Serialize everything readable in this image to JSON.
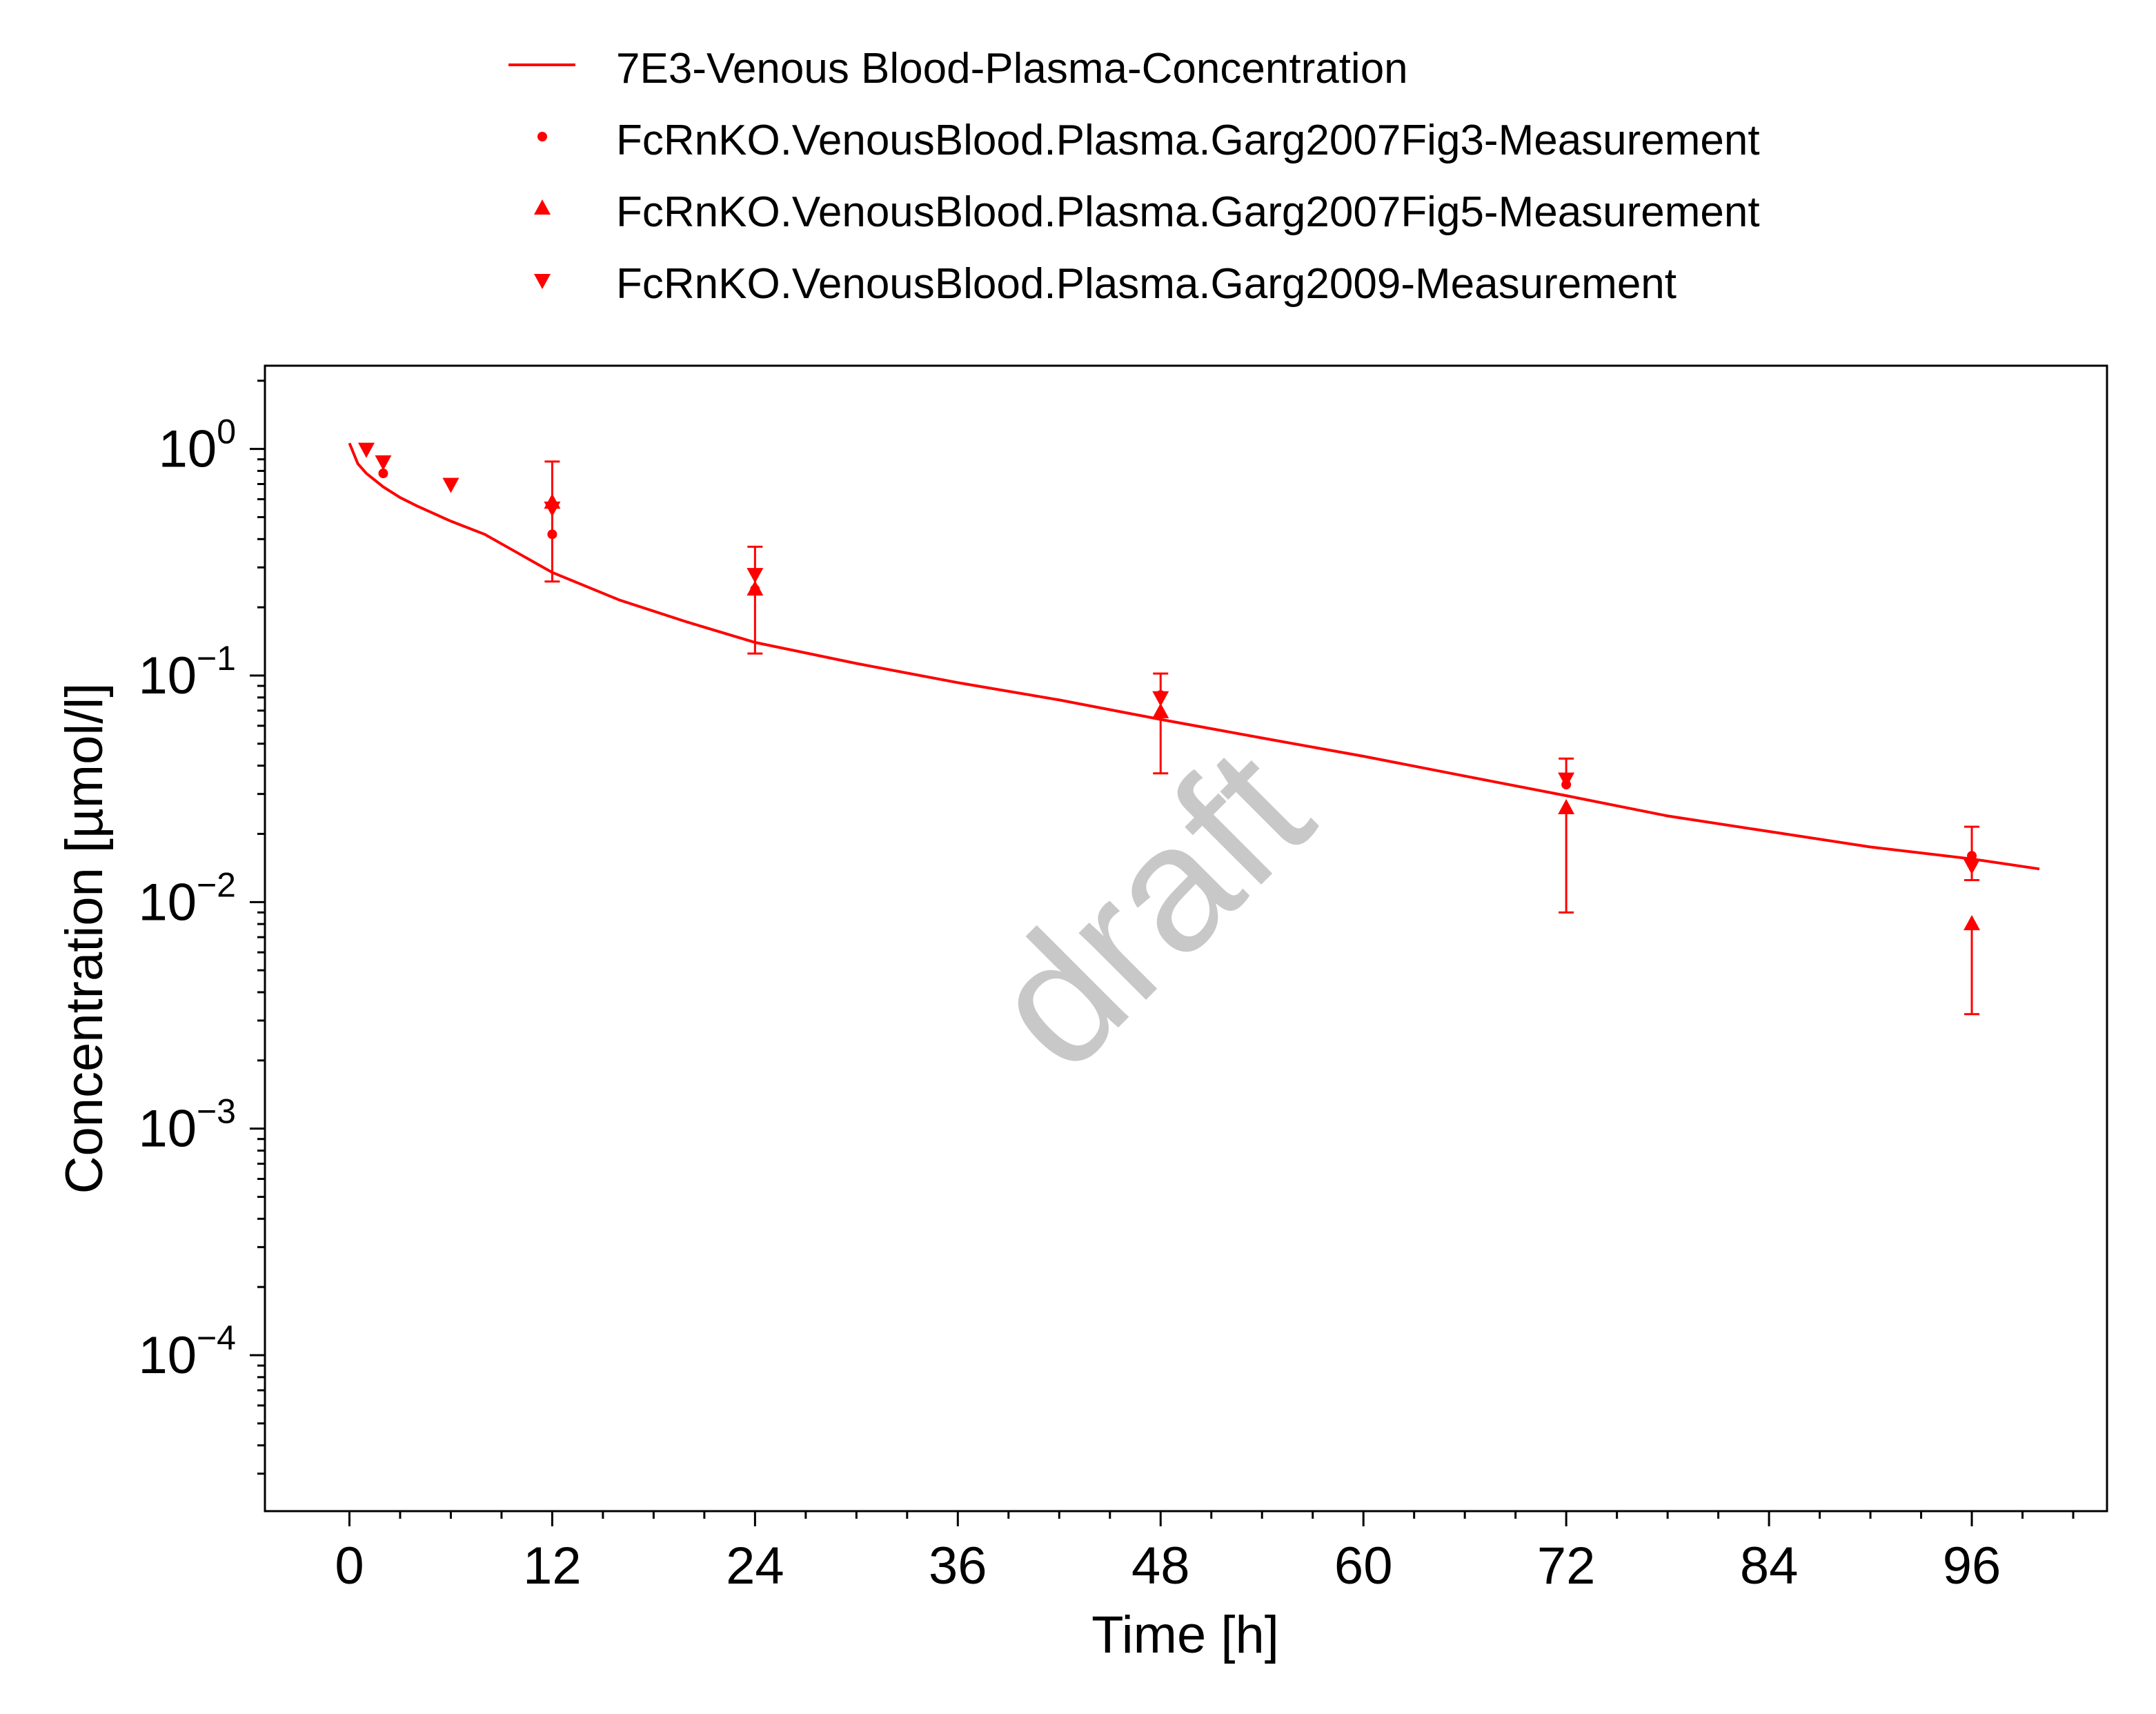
{
  "chart_data": {
    "type": "line",
    "title": "",
    "xlabel": "Time [h]",
    "ylabel": "Concentration [µmol/l]",
    "xlim": [
      -5,
      104
    ],
    "ylim": [
      2.05e-05,
      2.33
    ],
    "yscale": "log",
    "xticks": [
      0,
      12,
      24,
      36,
      48,
      60,
      72,
      84,
      96
    ],
    "yticks": [
      {
        "value": 1,
        "base": "10",
        "exp": "0"
      },
      {
        "value": 0.1,
        "base": "10",
        "exp": "−1"
      },
      {
        "value": 0.01,
        "base": "10",
        "exp": "−2"
      },
      {
        "value": 0.001,
        "base": "10",
        "exp": "−3"
      },
      {
        "value": 0.0001,
        "base": "10",
        "exp": "−4"
      }
    ],
    "grid": false,
    "legend_position": "top",
    "watermark": "draft",
    "series": [
      {
        "name": "7E3-Venous Blood-Plasma-Concentration",
        "kind": "line",
        "color": "#ff0000",
        "x": [
          0,
          0.5,
          1,
          2,
          3,
          4,
          6,
          8,
          12,
          16,
          20,
          24,
          30,
          36,
          42,
          48,
          54,
          60,
          66,
          72,
          78,
          84,
          90,
          96,
          100
        ],
        "y": [
          1.06,
          0.86,
          0.78,
          0.68,
          0.61,
          0.56,
          0.48,
          0.42,
          0.285,
          0.215,
          0.172,
          0.14,
          0.113,
          0.093,
          0.078,
          0.064,
          0.053,
          0.044,
          0.036,
          0.0295,
          0.024,
          0.0205,
          0.0175,
          0.0155,
          0.014
        ]
      },
      {
        "name": "FcRnKO.VenousBlood.Plasma.Garg2007Fig3-Measurement",
        "kind": "circle",
        "color": "#ff0000",
        "x": [
          2,
          12,
          24,
          48,
          72,
          96
        ],
        "y": [
          0.78,
          0.42,
          0.24,
          0.082,
          0.033,
          0.016
        ],
        "err_low": [
          null,
          0.26,
          0.125,
          0.037,
          null,
          0.0125
        ],
        "err_high": [
          null,
          0.88,
          0.37,
          0.102,
          0.043,
          0.0215
        ]
      },
      {
        "name": "FcRnKO.VenousBlood.Plasma.Garg2007Fig5-Measurement",
        "kind": "triangle-up",
        "color": "#ff0000",
        "x": [
          12,
          24,
          48,
          72,
          96
        ],
        "y": [
          0.58,
          0.24,
          0.069,
          0.026,
          0.008
        ],
        "err_low": [
          null,
          null,
          null,
          0.009,
          0.0032
        ],
        "err_high": [
          null,
          null,
          null,
          null,
          null
        ]
      },
      {
        "name": "FcRnKO.VenousBlood.Plasma.Garg2009-Measurement",
        "kind": "triangle-down",
        "color": "#ff0000",
        "x": [
          1,
          2,
          6,
          12,
          24,
          48,
          72,
          96
        ],
        "y": [
          1.0,
          0.88,
          0.7,
          0.55,
          0.28,
          0.08,
          0.035,
          0.0145
        ],
        "err_low": [
          null,
          null,
          null,
          null,
          null,
          null,
          null,
          null
        ],
        "err_high": [
          null,
          null,
          null,
          null,
          null,
          null,
          null,
          null
        ]
      }
    ]
  }
}
